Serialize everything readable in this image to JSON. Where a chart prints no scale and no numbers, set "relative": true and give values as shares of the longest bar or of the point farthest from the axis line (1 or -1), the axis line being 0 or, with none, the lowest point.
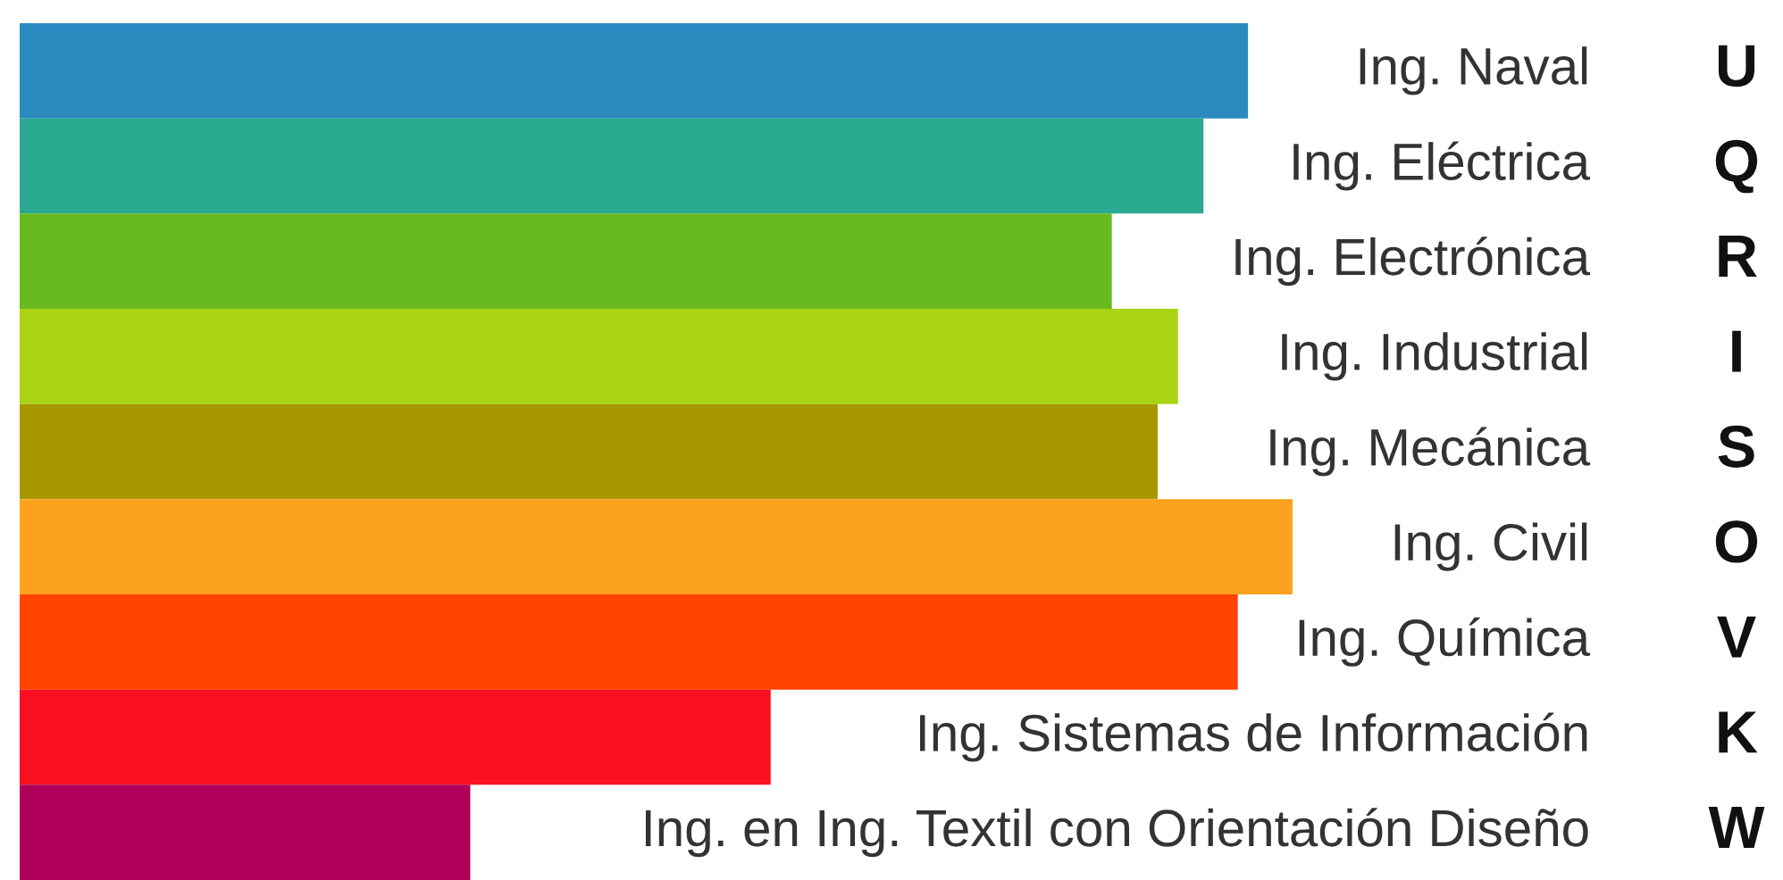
{
  "chart_data": {
    "type": "bar",
    "orientation": "horizontal",
    "relative": true,
    "categories": [
      "Ing. Naval",
      "Ing. Eléctrica",
      "Ing. Electrónica",
      "Ing. Industrial",
      "Ing. Mecánica",
      "Ing. Civil",
      "Ing. Química",
      "Ing. Sistemas de Información",
      "Ing. en Ing. Textil con Orientación Diseño"
    ],
    "values": [
      0.965,
      0.93,
      0.858,
      0.91,
      0.894,
      1,
      0.957,
      0.59,
      0.354
    ],
    "colors": [
      "#2b8bc0",
      "#2aaa90",
      "#69b921",
      "#a8d414",
      "#a89800",
      "#fda21f",
      "#fe4400",
      "#fa1121",
      "#b1005c"
    ],
    "annotations": [
      "U",
      "Q",
      "R",
      "I",
      "S",
      "O",
      "V",
      "K",
      "W"
    ]
  }
}
